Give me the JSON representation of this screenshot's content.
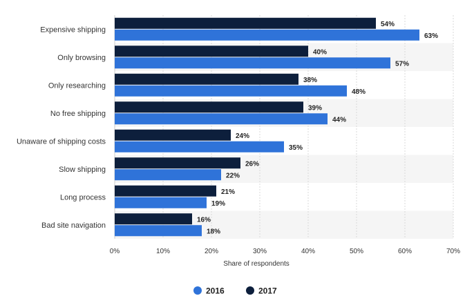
{
  "chart_data": {
    "type": "bar",
    "orientation": "horizontal",
    "categories": [
      "Expensive shipping",
      "Only browsing",
      "Only researching",
      "No free shipping",
      "Unaware of shipping costs",
      "Slow shipping",
      "Long process",
      "Bad site navigation"
    ],
    "series": [
      {
        "name": "2017",
        "color": "#0d1f3c",
        "values": [
          54,
          40,
          38,
          39,
          24,
          26,
          21,
          16
        ]
      },
      {
        "name": "2016",
        "color": "#2f73d9",
        "values": [
          63,
          57,
          48,
          44,
          35,
          22,
          19,
          18
        ]
      }
    ],
    "xlabel": "Share of respondents",
    "ylabel": "",
    "xlim": [
      0,
      70
    ],
    "x_ticks": [
      "0%",
      "10%",
      "20%",
      "30%",
      "40%",
      "50%",
      "60%",
      "70%"
    ],
    "value_suffix": "%",
    "grid": true,
    "alternating_row_shading": true,
    "legend": {
      "position": "bottom-center",
      "items": [
        {
          "label": "2016",
          "color": "#2f73d9"
        },
        {
          "label": "2017",
          "color": "#0d1f3c"
        }
      ]
    }
  }
}
